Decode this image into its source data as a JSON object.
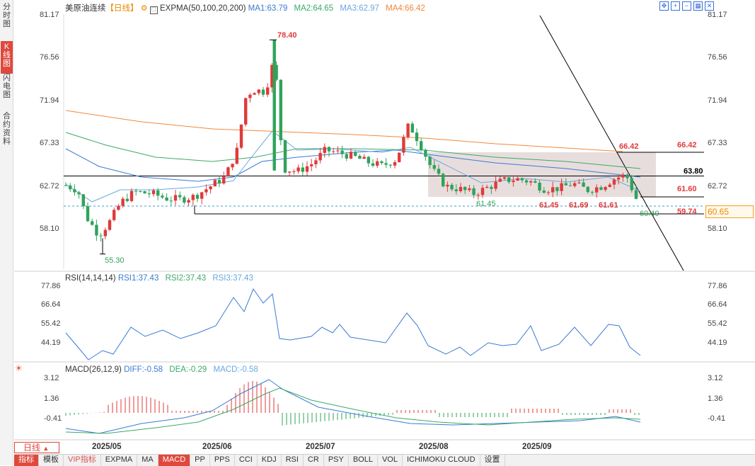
{
  "sidebar": {
    "tabs": [
      {
        "label": "分时图",
        "active": false
      },
      {
        "label": "K线图",
        "active": true
      },
      {
        "label": "闪电图",
        "active": false
      },
      {
        "label": "合约资料",
        "active": false
      }
    ]
  },
  "main_legend": {
    "title": "美原油连续",
    "period": "【日线】",
    "indicator": "EXPMA(50,100,20,200)",
    "ma1": "MA1:63.79",
    "ma2": "MA2:64.65",
    "ma3": "MA3:62.97",
    "ma4": "MA4:66.42"
  },
  "price_axis": {
    "left_ticks": [
      "81.17",
      "76.56",
      "71.94",
      "67.33",
      "62.72",
      "58.10"
    ],
    "right_ticks": [
      "81.17",
      "76.56",
      "71.94",
      "67.33",
      "62.72",
      "58.10"
    ]
  },
  "annotations": {
    "high": "78.40",
    "low": "55.30",
    "low_b": "61.45",
    "box_top": "66.42",
    "lvl_6642": "66.42",
    "lvl_6380": "63.80",
    "lvl_6160": "61.60",
    "lvl_5974": "59.74",
    "lbl_6145": "61.45",
    "lbl_6169": "61.69",
    "lbl_6161": "61.61",
    "lbl_6040": "60.40",
    "current_price": "60.65"
  },
  "rsi": {
    "title": "RSI(14,14,14)",
    "rsi1": "RSI1:37.43",
    "rsi2": "RSI2:37.43",
    "rsi3": "RSI3:37.43",
    "ticks": [
      "77.86",
      "66.64",
      "55.42",
      "44.19"
    ]
  },
  "macd": {
    "title": "MACD(26,12,9)",
    "diff": "DIFF:-0.58",
    "dea": "DEA:-0.29",
    "macd": "MACD:-0.58",
    "ticks": [
      "3.12",
      "1.36",
      "-0.41"
    ]
  },
  "dates": [
    "2025/05",
    "2025/06",
    "2025/07",
    "2025/08",
    "2025/09"
  ],
  "period_button": "日线",
  "bottom_bar": [
    "指标",
    "模板",
    "VIP指标",
    "EXPMA",
    "MA",
    "MACD",
    "PP",
    "PPS",
    "CCI",
    "KDJ",
    "RSI",
    "CR",
    "PSY",
    "BOLL",
    "VOL",
    "ICHIMOKU CLOUD",
    "设置"
  ],
  "bottom_bar_active": "MACD",
  "colors": {
    "up": "#e03a3a",
    "down": "#2fa35a",
    "ma1": "#3a7bd5",
    "ma2": "#3aaa6a",
    "ma3": "#6aa8e0",
    "ma4": "#f0883a",
    "accent": "#e0483c"
  }
}
